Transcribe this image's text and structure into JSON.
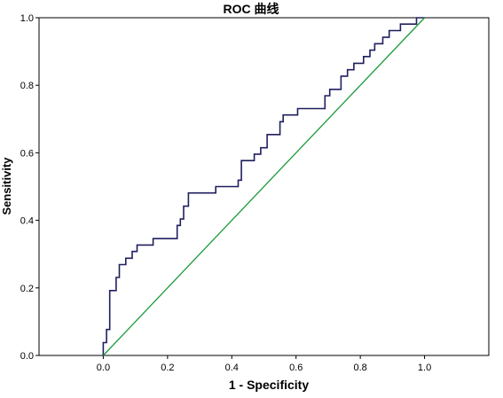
{
  "chart_data": {
    "type": "line",
    "title": "ROC 曲线",
    "xlabel": "1 - Specificity",
    "ylabel": "Sensitivity",
    "xlim": [
      -0.2,
      1.2
    ],
    "ylim": [
      0.0,
      1.0
    ],
    "x_ticks": [
      0.0,
      0.2,
      0.4,
      0.6,
      0.8,
      1.0
    ],
    "y_ticks": [
      0.0,
      0.2,
      0.4,
      0.6,
      0.8,
      1.0
    ],
    "x_tick_labels": [
      "0.0",
      "0.2",
      "0.4",
      "0.6",
      "0.8",
      "1.0"
    ],
    "y_tick_labels": [
      "0.0",
      "0.2",
      "0.4",
      "0.6",
      "0.8",
      "1.0"
    ],
    "grid": false,
    "series": [
      {
        "color": "#1f1f5f",
        "step": true,
        "points": [
          [
            0.0,
            0.0
          ],
          [
            0.0,
            0.038
          ],
          [
            0.01,
            0.038
          ],
          [
            0.01,
            0.077
          ],
          [
            0.02,
            0.077
          ],
          [
            0.02,
            0.192
          ],
          [
            0.04,
            0.192
          ],
          [
            0.04,
            0.231
          ],
          [
            0.05,
            0.231
          ],
          [
            0.05,
            0.269
          ],
          [
            0.07,
            0.269
          ],
          [
            0.07,
            0.288
          ],
          [
            0.09,
            0.288
          ],
          [
            0.09,
            0.308
          ],
          [
            0.105,
            0.308
          ],
          [
            0.105,
            0.327
          ],
          [
            0.155,
            0.327
          ],
          [
            0.155,
            0.346
          ],
          [
            0.23,
            0.346
          ],
          [
            0.23,
            0.385
          ],
          [
            0.24,
            0.385
          ],
          [
            0.24,
            0.404
          ],
          [
            0.25,
            0.404
          ],
          [
            0.25,
            0.442
          ],
          [
            0.265,
            0.442
          ],
          [
            0.265,
            0.481
          ],
          [
            0.35,
            0.481
          ],
          [
            0.35,
            0.5
          ],
          [
            0.42,
            0.5
          ],
          [
            0.42,
            0.519
          ],
          [
            0.43,
            0.519
          ],
          [
            0.43,
            0.577
          ],
          [
            0.47,
            0.577
          ],
          [
            0.47,
            0.596
          ],
          [
            0.49,
            0.596
          ],
          [
            0.49,
            0.615
          ],
          [
            0.51,
            0.615
          ],
          [
            0.51,
            0.654
          ],
          [
            0.55,
            0.654
          ],
          [
            0.55,
            0.692
          ],
          [
            0.56,
            0.692
          ],
          [
            0.56,
            0.712
          ],
          [
            0.605,
            0.712
          ],
          [
            0.605,
            0.731
          ],
          [
            0.69,
            0.731
          ],
          [
            0.69,
            0.769
          ],
          [
            0.705,
            0.769
          ],
          [
            0.705,
            0.788
          ],
          [
            0.74,
            0.788
          ],
          [
            0.74,
            0.827
          ],
          [
            0.76,
            0.827
          ],
          [
            0.76,
            0.846
          ],
          [
            0.78,
            0.846
          ],
          [
            0.78,
            0.865
          ],
          [
            0.81,
            0.865
          ],
          [
            0.81,
            0.885
          ],
          [
            0.83,
            0.885
          ],
          [
            0.83,
            0.904
          ],
          [
            0.845,
            0.904
          ],
          [
            0.845,
            0.923
          ],
          [
            0.87,
            0.923
          ],
          [
            0.87,
            0.942
          ],
          [
            0.89,
            0.942
          ],
          [
            0.89,
            0.962
          ],
          [
            0.925,
            0.962
          ],
          [
            0.925,
            0.981
          ],
          [
            0.975,
            0.981
          ],
          [
            0.975,
            1.0
          ],
          [
            1.0,
            1.0
          ]
        ]
      },
      {
        "color": "#1a9a3a",
        "points": [
          [
            0.0,
            0.0
          ],
          [
            1.0,
            1.0
          ]
        ]
      }
    ]
  }
}
